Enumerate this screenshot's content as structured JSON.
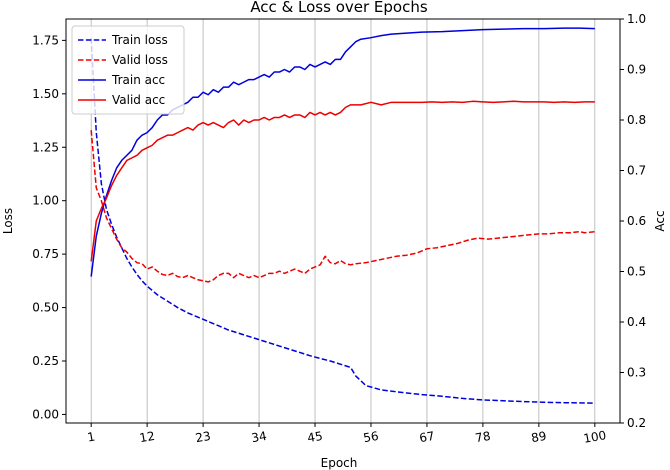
{
  "chart_data": {
    "type": "line",
    "title": "Acc & Loss over Epochs",
    "xlabel": "Epoch",
    "ylabel_left": "Loss",
    "ylabel_right": "Acc",
    "x_ticks": [
      1,
      12,
      23,
      34,
      45,
      56,
      67,
      78,
      89,
      100
    ],
    "xlim": [
      -3.95,
      104.95
    ],
    "ylim_left": [
      -0.04,
      1.85
    ],
    "ylim_right": [
      0.2,
      1.0
    ],
    "y_ticks_left": [
      "0.00",
      "0.25",
      "0.50",
      "0.75",
      "1.00",
      "1.25",
      "1.50",
      "1.75"
    ],
    "y_ticks_right": [
      "0.2",
      "0.3",
      "0.4",
      "0.5",
      "0.6",
      "0.7",
      "0.8",
      "0.9",
      "1.0"
    ],
    "grid": "vertical-major-x",
    "legend_position": "top-left",
    "colors": {
      "train": "#0000dd",
      "valid": "#ee0000",
      "grid": "#b0b0b0"
    },
    "series": [
      {
        "name": "Train loss",
        "axis": "left",
        "style": "dashed",
        "color": "#0000dd",
        "points": [
          [
            1,
            1.76
          ],
          [
            2,
            1.32
          ],
          [
            3,
            1.08
          ],
          [
            4,
            0.96
          ],
          [
            5,
            0.89
          ],
          [
            6,
            0.83
          ],
          [
            7,
            0.78
          ],
          [
            8,
            0.73
          ],
          [
            9,
            0.69
          ],
          [
            10,
            0.655
          ],
          [
            11,
            0.625
          ],
          [
            12,
            0.6
          ],
          [
            14,
            0.56
          ],
          [
            16,
            0.53
          ],
          [
            18,
            0.5
          ],
          [
            20,
            0.475
          ],
          [
            22,
            0.455
          ],
          [
            24,
            0.435
          ],
          [
            26,
            0.415
          ],
          [
            28,
            0.395
          ],
          [
            30,
            0.38
          ],
          [
            32,
            0.365
          ],
          [
            34,
            0.35
          ],
          [
            36,
            0.335
          ],
          [
            38,
            0.32
          ],
          [
            40,
            0.305
          ],
          [
            42,
            0.29
          ],
          [
            44,
            0.275
          ],
          [
            46,
            0.262
          ],
          [
            48,
            0.25
          ],
          [
            50,
            0.235
          ],
          [
            52,
            0.22
          ],
          [
            53,
            0.18
          ],
          [
            55,
            0.135
          ],
          [
            58,
            0.115
          ],
          [
            62,
            0.103
          ],
          [
            66,
            0.093
          ],
          [
            70,
            0.085
          ],
          [
            74,
            0.075
          ],
          [
            78,
            0.068
          ],
          [
            82,
            0.064
          ],
          [
            86,
            0.06
          ],
          [
            90,
            0.057
          ],
          [
            94,
            0.055
          ],
          [
            97,
            0.054
          ],
          [
            100,
            0.053
          ]
        ]
      },
      {
        "name": "Valid loss",
        "axis": "left",
        "style": "dashed",
        "color": "#ee0000",
        "points": [
          [
            1,
            1.33
          ],
          [
            2,
            1.06
          ],
          [
            3,
            1.0
          ],
          [
            4,
            0.92
          ],
          [
            5,
            0.87
          ],
          [
            6,
            0.82
          ],
          [
            7,
            0.78
          ],
          [
            8,
            0.76
          ],
          [
            9,
            0.73
          ],
          [
            10,
            0.71
          ],
          [
            11,
            0.705
          ],
          [
            12,
            0.68
          ],
          [
            13,
            0.69
          ],
          [
            14,
            0.67
          ],
          [
            15,
            0.655
          ],
          [
            16,
            0.65
          ],
          [
            17,
            0.66
          ],
          [
            18,
            0.645
          ],
          [
            19,
            0.64
          ],
          [
            20,
            0.65
          ],
          [
            21,
            0.64
          ],
          [
            22,
            0.63
          ],
          [
            23,
            0.625
          ],
          [
            24,
            0.62
          ],
          [
            25,
            0.63
          ],
          [
            26,
            0.65
          ],
          [
            27,
            0.66
          ],
          [
            28,
            0.66
          ],
          [
            29,
            0.64
          ],
          [
            30,
            0.66
          ],
          [
            31,
            0.65
          ],
          [
            32,
            0.64
          ],
          [
            33,
            0.65
          ],
          [
            34,
            0.64
          ],
          [
            35,
            0.65
          ],
          [
            36,
            0.66
          ],
          [
            37,
            0.66
          ],
          [
            38,
            0.67
          ],
          [
            39,
            0.66
          ],
          [
            40,
            0.67
          ],
          [
            41,
            0.68
          ],
          [
            42,
            0.67
          ],
          [
            43,
            0.66
          ],
          [
            44,
            0.68
          ],
          [
            45,
            0.69
          ],
          [
            46,
            0.7
          ],
          [
            47,
            0.74
          ],
          [
            48,
            0.71
          ],
          [
            49,
            0.705
          ],
          [
            50,
            0.72
          ],
          [
            51,
            0.705
          ],
          [
            52,
            0.7
          ],
          [
            53,
            0.705
          ],
          [
            55,
            0.71
          ],
          [
            57,
            0.72
          ],
          [
            59,
            0.73
          ],
          [
            61,
            0.74
          ],
          [
            63,
            0.745
          ],
          [
            65,
            0.755
          ],
          [
            67,
            0.775
          ],
          [
            69,
            0.78
          ],
          [
            71,
            0.79
          ],
          [
            73,
            0.8
          ],
          [
            75,
            0.815
          ],
          [
            77,
            0.825
          ],
          [
            79,
            0.82
          ],
          [
            81,
            0.825
          ],
          [
            83,
            0.83
          ],
          [
            85,
            0.835
          ],
          [
            87,
            0.84
          ],
          [
            89,
            0.845
          ],
          [
            91,
            0.845
          ],
          [
            93,
            0.85
          ],
          [
            95,
            0.85
          ],
          [
            97,
            0.855
          ],
          [
            98,
            0.85
          ],
          [
            100,
            0.855
          ]
        ]
      },
      {
        "name": "Train acc",
        "axis": "right",
        "style": "solid",
        "color": "#0000dd",
        "points": [
          [
            1,
            0.49
          ],
          [
            2,
            0.57
          ],
          [
            3,
            0.615
          ],
          [
            4,
            0.65
          ],
          [
            5,
            0.68
          ],
          [
            6,
            0.705
          ],
          [
            7,
            0.72
          ],
          [
            8,
            0.73
          ],
          [
            9,
            0.74
          ],
          [
            10,
            0.76
          ],
          [
            11,
            0.77
          ],
          [
            12,
            0.775
          ],
          [
            13,
            0.785
          ],
          [
            14,
            0.8
          ],
          [
            15,
            0.81
          ],
          [
            16,
            0.81
          ],
          [
            17,
            0.82
          ],
          [
            18,
            0.825
          ],
          [
            19,
            0.83
          ],
          [
            20,
            0.835
          ],
          [
            21,
            0.845
          ],
          [
            22,
            0.845
          ],
          [
            23,
            0.855
          ],
          [
            24,
            0.85
          ],
          [
            25,
            0.86
          ],
          [
            26,
            0.855
          ],
          [
            27,
            0.865
          ],
          [
            28,
            0.865
          ],
          [
            29,
            0.875
          ],
          [
            30,
            0.87
          ],
          [
            31,
            0.875
          ],
          [
            32,
            0.88
          ],
          [
            33,
            0.88
          ],
          [
            34,
            0.885
          ],
          [
            35,
            0.89
          ],
          [
            36,
            0.885
          ],
          [
            37,
            0.895
          ],
          [
            38,
            0.895
          ],
          [
            39,
            0.9
          ],
          [
            40,
            0.895
          ],
          [
            41,
            0.905
          ],
          [
            42,
            0.905
          ],
          [
            43,
            0.9
          ],
          [
            44,
            0.91
          ],
          [
            45,
            0.905
          ],
          [
            46,
            0.91
          ],
          [
            47,
            0.915
          ],
          [
            48,
            0.91
          ],
          [
            49,
            0.92
          ],
          [
            50,
            0.92
          ],
          [
            51,
            0.935
          ],
          [
            52,
            0.945
          ],
          [
            53,
            0.955
          ],
          [
            54,
            0.96
          ],
          [
            56,
            0.963
          ],
          [
            58,
            0.967
          ],
          [
            60,
            0.97
          ],
          [
            63,
            0.972
          ],
          [
            66,
            0.974
          ],
          [
            70,
            0.975
          ],
          [
            74,
            0.977
          ],
          [
            78,
            0.979
          ],
          [
            82,
            0.98
          ],
          [
            86,
            0.981
          ],
          [
            90,
            0.981
          ],
          [
            94,
            0.982
          ],
          [
            97,
            0.982
          ],
          [
            100,
            0.981
          ]
        ]
      },
      {
        "name": "Valid acc",
        "axis": "right",
        "style": "solid",
        "color": "#ee0000",
        "points": [
          [
            1,
            0.52
          ],
          [
            2,
            0.6
          ],
          [
            3,
            0.625
          ],
          [
            4,
            0.645
          ],
          [
            5,
            0.67
          ],
          [
            6,
            0.69
          ],
          [
            7,
            0.705
          ],
          [
            8,
            0.72
          ],
          [
            9,
            0.725
          ],
          [
            10,
            0.73
          ],
          [
            11,
            0.74
          ],
          [
            12,
            0.745
          ],
          [
            13,
            0.75
          ],
          [
            14,
            0.76
          ],
          [
            15,
            0.765
          ],
          [
            16,
            0.77
          ],
          [
            17,
            0.77
          ],
          [
            18,
            0.775
          ],
          [
            19,
            0.78
          ],
          [
            20,
            0.785
          ],
          [
            21,
            0.78
          ],
          [
            22,
            0.79
          ],
          [
            23,
            0.795
          ],
          [
            24,
            0.79
          ],
          [
            25,
            0.795
          ],
          [
            26,
            0.79
          ],
          [
            27,
            0.785
          ],
          [
            28,
            0.795
          ],
          [
            29,
            0.8
          ],
          [
            30,
            0.79
          ],
          [
            31,
            0.8
          ],
          [
            32,
            0.795
          ],
          [
            33,
            0.8
          ],
          [
            34,
            0.8
          ],
          [
            35,
            0.805
          ],
          [
            36,
            0.8
          ],
          [
            37,
            0.805
          ],
          [
            38,
            0.805
          ],
          [
            39,
            0.81
          ],
          [
            40,
            0.805
          ],
          [
            41,
            0.81
          ],
          [
            42,
            0.81
          ],
          [
            43,
            0.805
          ],
          [
            44,
            0.815
          ],
          [
            45,
            0.81
          ],
          [
            46,
            0.815
          ],
          [
            47,
            0.81
          ],
          [
            48,
            0.815
          ],
          [
            49,
            0.81
          ],
          [
            50,
            0.815
          ],
          [
            51,
            0.825
          ],
          [
            52,
            0.83
          ],
          [
            54,
            0.83
          ],
          [
            56,
            0.835
          ],
          [
            58,
            0.83
          ],
          [
            60,
            0.835
          ],
          [
            62,
            0.835
          ],
          [
            64,
            0.835
          ],
          [
            66,
            0.835
          ],
          [
            68,
            0.836
          ],
          [
            70,
            0.835
          ],
          [
            72,
            0.836
          ],
          [
            74,
            0.835
          ],
          [
            76,
            0.837
          ],
          [
            78,
            0.836
          ],
          [
            80,
            0.835
          ],
          [
            82,
            0.836
          ],
          [
            84,
            0.837
          ],
          [
            86,
            0.836
          ],
          [
            88,
            0.836
          ],
          [
            90,
            0.836
          ],
          [
            92,
            0.835
          ],
          [
            94,
            0.836
          ],
          [
            96,
            0.835
          ],
          [
            98,
            0.836
          ],
          [
            100,
            0.836
          ]
        ]
      }
    ]
  }
}
